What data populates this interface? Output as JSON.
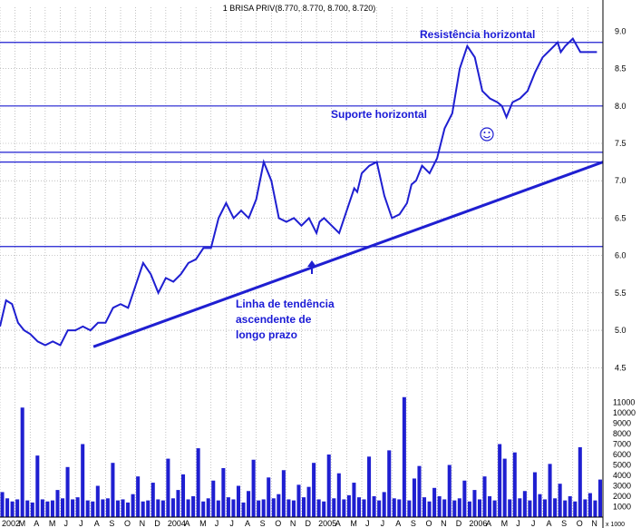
{
  "chart_data": {
    "type": "line",
    "title": "1 BRISA PRIV(8.770, 8.770, 8.700, 8.720)",
    "price_ticks": [
      "4.5",
      "5.0",
      "5.5",
      "6.0",
      "6.5",
      "7.0",
      "7.5",
      "8.0",
      "8.5",
      "9.0"
    ],
    "price_ylim": [
      4.2,
      9.15
    ],
    "volume_ticks": [
      "1000",
      "2000",
      "3000",
      "4000",
      "5000",
      "6000",
      "7000",
      "8000",
      "9000",
      "10000",
      "11000"
    ],
    "volume_unit": "x 1000",
    "volume_ylim": [
      0,
      12000
    ],
    "x_ticks": [
      "2002",
      "M",
      "A",
      "M",
      "J",
      "J",
      "A",
      "S",
      "O",
      "N",
      "D",
      "2004",
      "A",
      "M",
      "J",
      "J",
      "A",
      "S",
      "O",
      "N",
      "D",
      "2005",
      "A",
      "M",
      "J",
      "J",
      "A",
      "S",
      "O",
      "N",
      "D",
      "2006",
      "A",
      "M",
      "J",
      "J",
      "A",
      "S",
      "O",
      "N"
    ],
    "xlim": [
      0,
      40
    ],
    "series": [
      {
        "x": [
          0,
          0.4,
          0.8,
          1.2,
          1.6,
          2,
          2.5,
          3,
          3.5,
          4,
          4.5,
          5,
          5.5,
          6,
          6.5,
          7,
          7.5,
          8,
          8.5,
          9,
          9.5,
          10,
          10.5,
          11,
          11.5,
          12,
          12.5,
          13,
          13.5,
          14,
          14.5,
          15,
          15.5,
          16,
          16.5,
          17,
          17.5,
          18,
          18.5,
          19,
          19.5,
          20,
          20.5,
          21,
          21.2,
          21.5,
          22,
          22.5,
          23,
          23.5,
          23.7,
          24,
          24.5,
          25,
          25.5,
          26,
          26.5,
          27,
          27.3,
          27.6,
          28,
          28.5,
          29,
          29.5,
          30,
          30.5,
          31,
          31.5,
          32,
          32.5,
          33,
          33.3,
          33.6,
          34,
          34.5,
          35,
          35.5,
          36,
          36.5,
          37,
          37.2,
          37.5,
          38,
          38.5,
          39,
          39.3,
          39.6
        ],
        "values": [
          5.05,
          5.4,
          5.35,
          5.1,
          5.0,
          4.95,
          4.85,
          4.8,
          4.85,
          4.8,
          5.0,
          5.0,
          5.05,
          5.0,
          5.1,
          5.1,
          5.3,
          5.35,
          5.3,
          5.6,
          5.9,
          5.75,
          5.5,
          5.7,
          5.65,
          5.75,
          5.9,
          5.95,
          6.1,
          6.1,
          6.5,
          6.7,
          6.5,
          6.6,
          6.5,
          6.75,
          7.25,
          7.0,
          6.5,
          6.45,
          6.5,
          6.4,
          6.5,
          6.3,
          6.45,
          6.5,
          6.4,
          6.3,
          6.6,
          6.9,
          6.85,
          7.1,
          7.2,
          7.25,
          6.8,
          6.5,
          6.55,
          6.7,
          6.95,
          7.0,
          7.2,
          7.1,
          7.3,
          7.7,
          7.9,
          8.5,
          8.8,
          8.65,
          8.2,
          8.1,
          8.05,
          8.0,
          7.85,
          8.05,
          8.1,
          8.2,
          8.45,
          8.65,
          8.75,
          8.85,
          8.72,
          8.8,
          8.9,
          8.72,
          8.72,
          8.72,
          8.72
        ]
      }
    ],
    "volume": [
      2400,
      1800,
      1500,
      1700,
      10500,
      1600,
      1400,
      5900,
      1700,
      1500,
      1600,
      2600,
      1800,
      4800,
      1700,
      1900,
      7000,
      1600,
      1500,
      3000,
      1700,
      1800,
      5200,
      1600,
      1700,
      1400,
      2200,
      3900,
      1500,
      1600,
      3300,
      1700,
      1600,
      5600,
      1800,
      2600,
      4100,
      1700,
      2000,
      6600,
      1500,
      1800,
      3500,
      1600,
      4700,
      1900,
      1700,
      3000,
      1400,
      2500,
      5500,
      1600,
      1700,
      3800,
      1800,
      2200,
      4500,
      1700,
      1600,
      3100,
      1900,
      2900,
      5200,
      1700,
      1500,
      6000,
      1800,
      4200,
      1700,
      2100,
      3300,
      1900,
      1700,
      5800,
      2000,
      1600,
      2400,
      6400,
      1800,
      1700,
      11500,
      1600,
      3700,
      4900,
      1900,
      1500,
      2800,
      2000,
      1700,
      5000,
      1600,
      1800,
      3500,
      1500,
      2600,
      1700,
      3900,
      2000,
      1600,
      7000,
      5600,
      1700,
      6200,
      1800,
      2500,
      1600,
      4300,
      2200,
      1700,
      5100,
      1800,
      3200,
      1600,
      2000,
      1500,
      6700,
      1700,
      2300,
      1600,
      3600
    ],
    "horizontal_lines": [
      {
        "y": 8.85,
        "label": "Resistência horizontal"
      },
      {
        "y": 8.0,
        "label": "Suporte horizontal"
      },
      {
        "y": 7.38,
        "label": ""
      },
      {
        "y": 7.25,
        "label": ""
      },
      {
        "y": 6.12,
        "label": ""
      }
    ],
    "trendline": {
      "x": [
        6.2,
        40
      ],
      "y": [
        4.78,
        7.25
      ],
      "label_lines": [
        "Linha de tendência",
        "ascendente de",
        "longo prazo"
      ]
    },
    "line_color": "#1f1fd1"
  }
}
